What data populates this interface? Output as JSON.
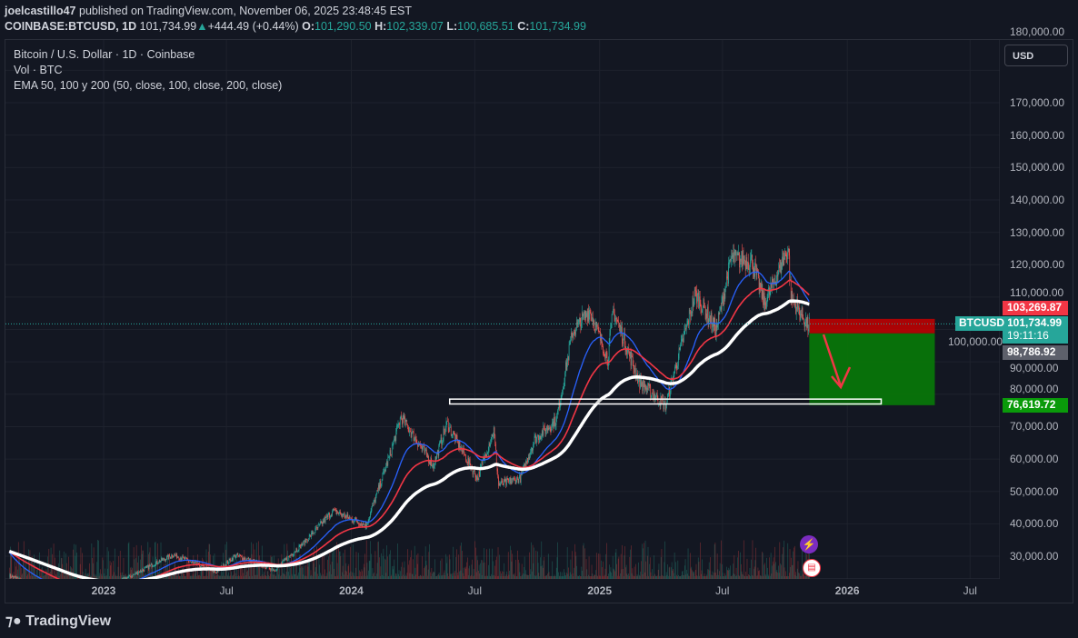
{
  "header": {
    "author": "joelcastillo47",
    "published": "published on TradingView.com, November 06, 2025 23:48:45 EST",
    "symbol": "COINBASE:BTCUSD, 1D",
    "last": "101,734.99",
    "change": "+444.49 (+0.44%)",
    "o_label": "O:",
    "o": "101,290.50",
    "h_label": "H:",
    "h": "102,339.07",
    "l_label": "L:",
    "l": "100,685.51",
    "c_label": "C:",
    "c": "101,734.99"
  },
  "legend": {
    "title": "Bitcoin / U.S. Dollar · 1D · Coinbase",
    "vol": "Vol · BTC",
    "ema": "EMA 50, 100 y 200 (50, close, 100, close, 200, close)"
  },
  "currency": "USD",
  "tags": {
    "stop": "103,269.87",
    "price": "101,734.99",
    "countdown": "19:11:16",
    "entry": "98,786.92",
    "target": "76,619.72",
    "symbol_tag": "BTCUSD"
  },
  "colors": {
    "up": "#26a69a",
    "down": "#ef5350",
    "ema50": "#2962ff",
    "ema100": "#f23645",
    "ema200": "#ffffff",
    "stop_zone": "#c70000",
    "target_zone": "#087a08"
  },
  "brand": "TradingView",
  "chart_data": {
    "type": "line",
    "title": "Bitcoin / U.S. Dollar · 1D · Coinbase",
    "ylim": [
      23000,
      182000
    ],
    "y_ticks": [
      "180,000.00",
      "170,000.00",
      "160,000.00",
      "150,000.00",
      "140,000.00",
      "130,000.00",
      "120,000.00",
      "110,000.00",
      "100,000.00",
      "90,000.00",
      "80,000.00",
      "70,000.00",
      "60,000.00",
      "50,000.00",
      "40,000.00",
      "30,000.00"
    ],
    "x_ticks": [
      {
        "label": "2023",
        "date": "2023-01-01"
      },
      {
        "label": "Jul",
        "date": "2023-07-01"
      },
      {
        "label": "2024",
        "date": "2024-01-01"
      },
      {
        "label": "Jul",
        "date": "2024-07-01"
      },
      {
        "label": "2025",
        "date": "2025-01-01"
      },
      {
        "label": "Jul",
        "date": "2025-07-01"
      },
      {
        "label": "2026",
        "date": "2026-01-01"
      },
      {
        "label": "Jul",
        "date": "2026-07-01"
      }
    ],
    "close_series": [
      [
        "2022-08-15",
        24000
      ],
      [
        "2022-11-10",
        17000
      ],
      [
        "2023-01-15",
        21000
      ],
      [
        "2023-03-20",
        28000
      ],
      [
        "2023-04-14",
        30500
      ],
      [
        "2023-06-15",
        25000
      ],
      [
        "2023-07-15",
        30300
      ],
      [
        "2023-09-10",
        25800
      ],
      [
        "2023-10-25",
        34500
      ],
      [
        "2023-12-05",
        44000
      ],
      [
        "2024-01-23",
        39500
      ],
      [
        "2024-02-28",
        62000
      ],
      [
        "2024-03-14",
        73000
      ],
      [
        "2024-05-01",
        58000
      ],
      [
        "2024-05-21",
        71000
      ],
      [
        "2024-07-05",
        54000
      ],
      [
        "2024-07-29",
        69000
      ],
      [
        "2024-08-05",
        52000
      ],
      [
        "2024-09-06",
        54000
      ],
      [
        "2024-09-27",
        66000
      ],
      [
        "2024-10-29",
        72000
      ],
      [
        "2024-11-22",
        99000
      ],
      [
        "2024-12-17",
        106000
      ],
      [
        "2025-01-13",
        91000
      ],
      [
        "2025-01-21",
        106000
      ],
      [
        "2025-02-28",
        84000
      ],
      [
        "2025-04-08",
        76500
      ],
      [
        "2025-05-22",
        111000
      ],
      [
        "2025-06-22",
        100000
      ],
      [
        "2025-07-14",
        122000
      ],
      [
        "2025-08-14",
        121000
      ],
      [
        "2025-09-01",
        108000
      ],
      [
        "2025-10-06",
        125000
      ],
      [
        "2025-10-10",
        110000
      ],
      [
        "2025-11-04",
        101000
      ],
      [
        "2025-11-06",
        101734.99
      ]
    ],
    "ema_periods": [
      50,
      100,
      200
    ],
    "short_position": {
      "start": "2025-11-06",
      "end": "2026-05-10",
      "entry": 98786.92,
      "stop": 103269.87,
      "target": 76619.72
    },
    "support_box": {
      "start": "2024-05-25",
      "end": "2026-02-20",
      "low": 77000,
      "high": 78500
    },
    "current_price": 101734.99
  }
}
